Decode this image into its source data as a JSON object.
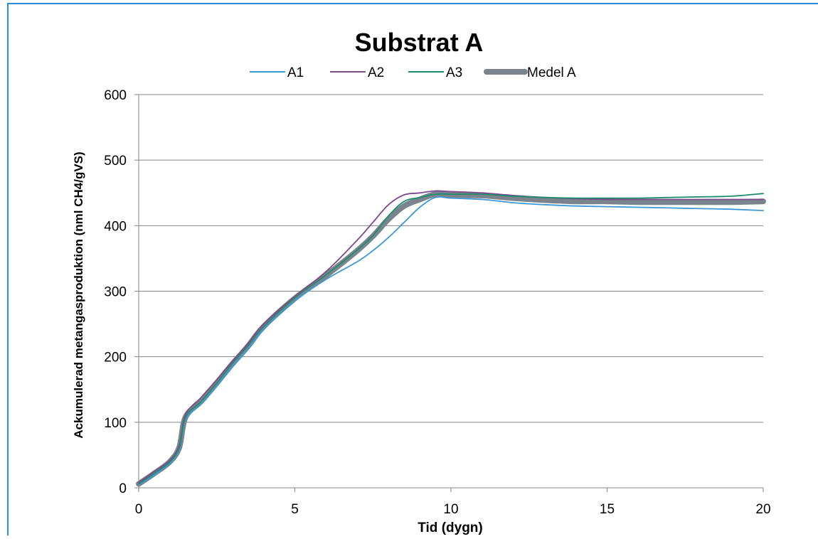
{
  "chart_data": {
    "type": "line",
    "title": "Substrat A",
    "xlabel": "Tid (dygn)",
    "ylabel": "Ackumulerad metangasproduktion  (nml CH4/gVS)",
    "xlim": [
      0,
      20
    ],
    "ylim": [
      0,
      600
    ],
    "xticks": [
      0,
      5,
      10,
      15,
      20
    ],
    "yticks": [
      0,
      100,
      200,
      300,
      400,
      500,
      600
    ],
    "grid": "horizontal",
    "legend_position": "top",
    "series": [
      {
        "name": "A1",
        "color": "#3d98d6",
        "x": [
          0,
          0.5,
          1,
          1.3,
          1.5,
          2,
          2.5,
          3,
          3.5,
          4,
          5,
          6,
          7,
          7.5,
          8,
          8.5,
          9,
          9.5,
          10,
          11,
          12,
          13,
          14,
          15,
          16,
          17,
          18,
          19,
          20
        ],
        "y": [
          5,
          20,
          38,
          60,
          105,
          128,
          155,
          185,
          212,
          242,
          285,
          318,
          345,
          362,
          382,
          405,
          428,
          443,
          442,
          440,
          435,
          432,
          430,
          429,
          428,
          427,
          426,
          425,
          423
        ]
      },
      {
        "name": "A2",
        "color": "#7d4a8f",
        "x": [
          0,
          0.5,
          1,
          1.3,
          1.5,
          2,
          2.5,
          3,
          3.5,
          4,
          5,
          6,
          7,
          7.5,
          8,
          8.5,
          9,
          9.5,
          10,
          11,
          12,
          13,
          14,
          15,
          16,
          17,
          18,
          19,
          20
        ],
        "y": [
          8,
          25,
          42,
          65,
          112,
          138,
          165,
          193,
          220,
          250,
          292,
          330,
          378,
          405,
          432,
          447,
          450,
          453,
          452,
          450,
          446,
          443,
          441,
          440,
          440,
          440,
          440,
          440,
          440
        ]
      },
      {
        "name": "A3",
        "color": "#1e8c6c",
        "x": [
          0,
          0.5,
          1,
          1.3,
          1.5,
          2,
          2.5,
          3,
          3.5,
          4,
          5,
          6,
          7,
          7.5,
          8,
          8.5,
          9,
          9.5,
          10,
          11,
          12,
          13,
          14,
          15,
          16,
          17,
          18,
          19,
          20
        ],
        "y": [
          6,
          22,
          40,
          62,
          108,
          132,
          160,
          190,
          217,
          246,
          290,
          325,
          363,
          385,
          415,
          437,
          443,
          448,
          448,
          448,
          445,
          443,
          442,
          442,
          442,
          443,
          444,
          445,
          449
        ]
      },
      {
        "name": "Medel A",
        "color": "#7b848c",
        "x": [
          0,
          0.5,
          1,
          1.3,
          1.5,
          2,
          2.5,
          3,
          3.5,
          4,
          5,
          6,
          7,
          7.5,
          8,
          8.5,
          9,
          9.5,
          10,
          11,
          12,
          13,
          14,
          15,
          16,
          17,
          18,
          19,
          20
        ],
        "y": [
          6,
          22,
          40,
          62,
          108,
          132,
          160,
          189,
          216,
          246,
          289,
          324,
          362,
          384,
          410,
          430,
          440,
          448,
          447,
          446,
          442,
          439,
          437,
          437,
          436,
          436,
          436,
          436,
          437
        ]
      }
    ]
  }
}
